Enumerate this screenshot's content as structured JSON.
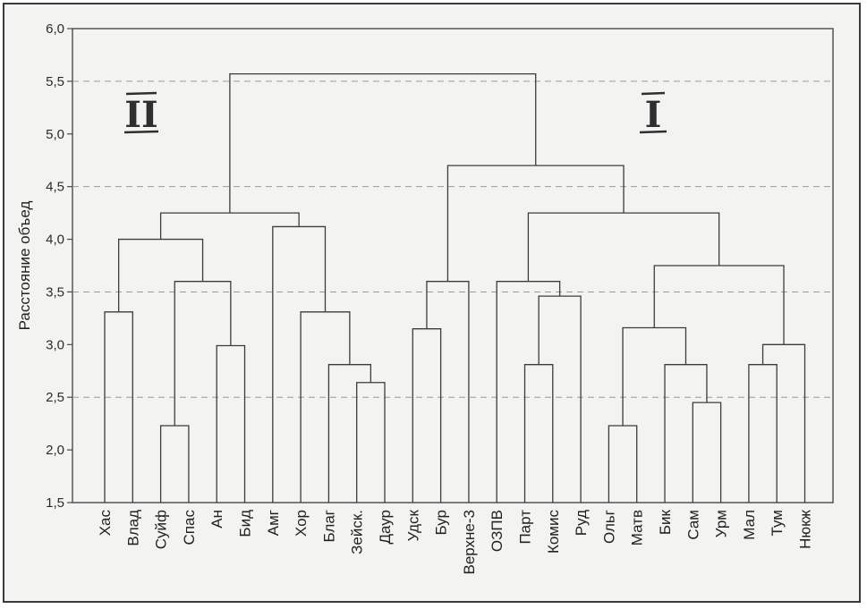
{
  "chart_data": {
    "type": "dendrogram",
    "ylabel": "Расстояние объед",
    "ylim": [
      1.5,
      6.0
    ],
    "yticks": [
      "1,5",
      "2,0",
      "2,5",
      "3,0",
      "3,5",
      "4,0",
      "4,5",
      "5,0",
      "5,5",
      "6,0"
    ],
    "ytick_values": [
      1.5,
      2.0,
      2.5,
      3.0,
      3.5,
      4.0,
      4.5,
      5.0,
      5.5,
      6.0
    ],
    "dashed_gridlines_at": [
      2.5,
      3.5,
      4.5,
      5.5
    ],
    "leaves": [
      "Хас",
      "Влад",
      "Суйф",
      "Спас",
      "Ан",
      "Бид",
      "Амг",
      "Хор",
      "Благ",
      "Зейск.",
      "Даур",
      "Удск",
      "Бур",
      "Верхне-3",
      "ОЗПВ",
      "Парт",
      "Комис",
      "Руд",
      "Ольг",
      "Матв",
      "Бик",
      "Сам",
      "Урм",
      "Мал",
      "Тум",
      "Нюкж"
    ],
    "merges": [
      {
        "a": "Суйф",
        "b": "Спас",
        "height": 2.23
      },
      {
        "a": "Ольг",
        "b": "Матв",
        "height": 2.23
      },
      {
        "a": "Сам",
        "b": "Урм",
        "height": 2.45
      },
      {
        "a": "Зейск.",
        "b": "Даур",
        "height": 2.64
      },
      {
        "a": "Благ",
        "b": "Зейск.+Даур",
        "height": 2.81
      },
      {
        "a": "Парт",
        "b": "Комис",
        "height": 2.81
      },
      {
        "a": "Бик",
        "b": "Сам+Урм",
        "height": 2.81
      },
      {
        "a": "Мал",
        "b": "Тум",
        "height": 2.81
      },
      {
        "a": "Ан",
        "b": "Бид",
        "height": 2.99
      },
      {
        "a": "Мал+Тум",
        "b": "Нюкж",
        "height": 3.0
      },
      {
        "a": "Удск",
        "b": "Бур",
        "height": 3.15
      },
      {
        "a": "Ольг+Матв",
        "b": "Бик+Сам+Урм",
        "height": 3.16
      },
      {
        "a": "Хас",
        "b": "Влад",
        "height": 3.31
      },
      {
        "a": "Хор",
        "b": "Благ+Зейск.+Даур",
        "height": 3.31
      },
      {
        "a": "Парт+Комис",
        "b": "Руд",
        "height": 3.46
      },
      {
        "a": "Суйф+Спас",
        "b": "Ан+Бид",
        "height": 3.6
      },
      {
        "a": "Удск+Бур",
        "b": "Верхне-3",
        "height": 3.6
      },
      {
        "a": "ОЗПВ",
        "b": "Парт+Комис+Руд",
        "height": 3.6
      },
      {
        "a": "Ольг…Урм",
        "b": "Мал+Тум+Нюкж",
        "height": 3.75
      },
      {
        "a": "Хас+Влад",
        "b": "Суйф+Спас+Ан+Бид",
        "height": 4.0
      },
      {
        "a": "Амг",
        "b": "Хор+Благ+Зейск.+Даур",
        "height": 4.12
      },
      {
        "a": "ОЗПВ…Руд",
        "b": "Ольг…Нюкж",
        "height": 4.25
      },
      {
        "a": "Хас…Бид",
        "b": "Амг…Даур",
        "height": 4.25
      },
      {
        "a": "Удск+Бур+Верхне-3",
        "b": "ОЗПВ…Нюкж",
        "height": 4.7
      },
      {
        "a": "Хас…Даур",
        "b": "Удск…Нюкж",
        "height": 5.57
      }
    ],
    "annotations": [
      {
        "text": "II",
        "group": "Хас…Даур"
      },
      {
        "text": "I",
        "group": "Удск…Нюкж"
      }
    ],
    "grid": "dashed horizontal",
    "legend": "none"
  }
}
